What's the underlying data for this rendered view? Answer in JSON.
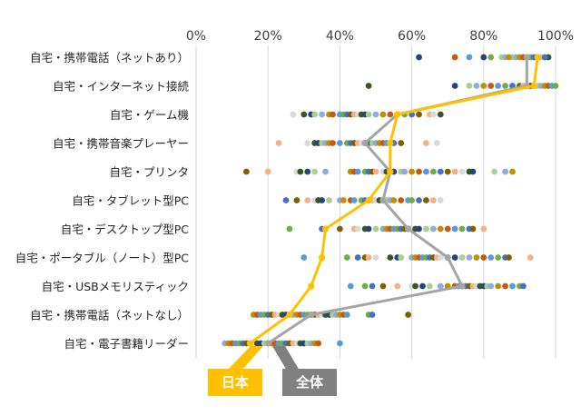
{
  "chart_data": {
    "type": "scatter",
    "orientation": "horizontal",
    "xlim": [
      0,
      100
    ],
    "x_ticks": [
      "0%",
      "20%",
      "40%",
      "60%",
      "80%",
      "100%"
    ],
    "categories": [
      "自宅・携帯電話（ネットあり）",
      "自宅・インターネット接続",
      "自宅・ゲーム機",
      "自宅・携帯音楽プレーヤー",
      "自宅・プリンタ",
      "自宅・タブレット型PC",
      "自宅・デスクトップ型PC",
      "自宅・ポータブル（ノート）型PC",
      "自宅・USBメモリスティック",
      "自宅・携帯電話（ネットなし）",
      "自宅・電子書籍リーダー"
    ],
    "series": [
      {
        "name": "日本",
        "color": "#FFC000",
        "values": [
          95,
          94,
          56,
          54,
          54,
          48,
          36,
          35,
          32,
          26,
          15
        ]
      },
      {
        "name": "全体",
        "color": "#A5A5A5",
        "values": [
          92,
          92,
          56,
          47,
          54,
          52,
          59,
          70,
          74,
          32,
          20
        ]
      }
    ],
    "country_colors": [
      "#264478",
      "#4472C4",
      "#8FAADC",
      "#F4B183",
      "#C55A11",
      "#375623",
      "#70AD47",
      "#A9D18E",
      "#7F6000",
      "#BF9000",
      "#D9D9D9",
      "#5B9BD5"
    ],
    "countries": [
      [
        62,
        88,
        89,
        90,
        91,
        92,
        93,
        94,
        95,
        96,
        97,
        98,
        80,
        85,
        86,
        87,
        72,
        76,
        82,
        97
      ],
      [
        48,
        72,
        76,
        78,
        80,
        82,
        84,
        86,
        88,
        90,
        91,
        92,
        93,
        94,
        95,
        96,
        97,
        98,
        99,
        100
      ],
      [
        27,
        30,
        32,
        33,
        35,
        37,
        38,
        40,
        41,
        42,
        43,
        44,
        45,
        46,
        47,
        48,
        50,
        52,
        54,
        56,
        58,
        60,
        62,
        65,
        66,
        68
      ],
      [
        23,
        31,
        33,
        34,
        35,
        36,
        37,
        38,
        40,
        42,
        43,
        44,
        45,
        46,
        47,
        48,
        49,
        50,
        51,
        52,
        53,
        54,
        55,
        57,
        64,
        67
      ],
      [
        14,
        20,
        28,
        29,
        31,
        33,
        36,
        43,
        44,
        45,
        47,
        48,
        49,
        50,
        52,
        53,
        55,
        57,
        58,
        60,
        62,
        64,
        66,
        68,
        70,
        72,
        74,
        76,
        77,
        83,
        86,
        88
      ],
      [
        25,
        28,
        31,
        33,
        34,
        35,
        37,
        40,
        41,
        43,
        44,
        46,
        47,
        48,
        49,
        50,
        51,
        52,
        53,
        54,
        55,
        57,
        59,
        60,
        62,
        64,
        66,
        68
      ],
      [
        26,
        35,
        40,
        44,
        45,
        47,
        48,
        50,
        52,
        53,
        54,
        55,
        56,
        57,
        58,
        59,
        60,
        61,
        62,
        64,
        66,
        68,
        70,
        72,
        74,
        76,
        77,
        80
      ],
      [
        30,
        42,
        45,
        47,
        48,
        50,
        54,
        56,
        57,
        60,
        61,
        62,
        63,
        64,
        65,
        66,
        67,
        68,
        70,
        72,
        74,
        76,
        78,
        80,
        82,
        84,
        86,
        87,
        93
      ],
      [
        32,
        43,
        47,
        49,
        52,
        56,
        60,
        61,
        63,
        65,
        68,
        70,
        72,
        73,
        74,
        75,
        76,
        77,
        78,
        79,
        80,
        81,
        82,
        84,
        86,
        88,
        90,
        91
      ],
      [
        16,
        17,
        18,
        19,
        20,
        21,
        22,
        23,
        24,
        25,
        26,
        27,
        28,
        29,
        30,
        31,
        32,
        33,
        34,
        35,
        36,
        37,
        38,
        39,
        40,
        41,
        42,
        48,
        49,
        59
      ],
      [
        8,
        9,
        10,
        11,
        12,
        13,
        14,
        15,
        16,
        17,
        18,
        19,
        20,
        21,
        22,
        23,
        24,
        25,
        26,
        27,
        28,
        29,
        30,
        31,
        32,
        33,
        34,
        40
      ]
    ],
    "grid": "vertical",
    "legend": "bottom-left callouts"
  },
  "callouts": {
    "japan": "日本",
    "overall": "全体"
  }
}
